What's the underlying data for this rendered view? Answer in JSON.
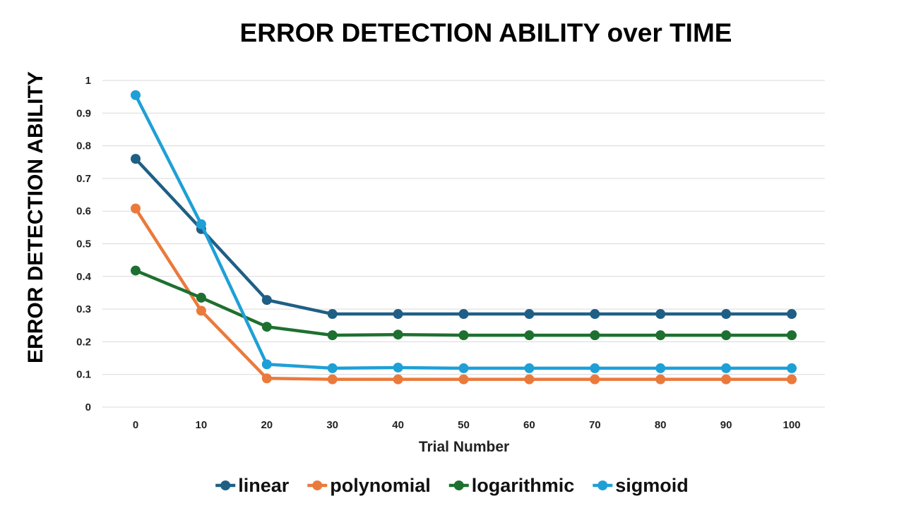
{
  "chart_data": {
    "type": "line",
    "title": "ERROR DETECTION ABILITY over TIME",
    "xlabel": "Trial Number",
    "ylabel": "ERROR DETECTION ABILITY",
    "x": [
      0,
      10,
      20,
      30,
      40,
      50,
      60,
      70,
      80,
      90,
      100
    ],
    "ylim": [
      0,
      1
    ],
    "yticks": [
      "0",
      "0.1",
      "0.2",
      "0.3",
      "0.4",
      "0.5",
      "0.6",
      "0.7",
      "0.8",
      "0.9",
      "1"
    ],
    "xticks": [
      "0",
      "10",
      "20",
      "30",
      "40",
      "50",
      "60",
      "70",
      "80",
      "90",
      "100"
    ],
    "grid": true,
    "legend_position": "bottom",
    "series": [
      {
        "name": "linear",
        "color": "#1f5f85",
        "values": [
          0.76,
          0.545,
          0.328,
          0.285,
          0.285,
          0.285,
          0.285,
          0.285,
          0.285,
          0.285,
          0.285
        ]
      },
      {
        "name": "polynomial",
        "color": "#ea7a3c",
        "values": [
          0.608,
          0.295,
          0.088,
          0.085,
          0.085,
          0.085,
          0.085,
          0.085,
          0.085,
          0.085,
          0.085
        ]
      },
      {
        "name": "logarithmic",
        "color": "#1e7030",
        "values": [
          0.418,
          0.335,
          0.246,
          0.22,
          0.222,
          0.22,
          0.22,
          0.22,
          0.22,
          0.22,
          0.22
        ]
      },
      {
        "name": "sigmoid",
        "color": "#1ea0d6",
        "values": [
          0.955,
          0.56,
          0.131,
          0.119,
          0.121,
          0.119,
          0.119,
          0.119,
          0.119,
          0.119,
          0.119
        ]
      }
    ]
  }
}
